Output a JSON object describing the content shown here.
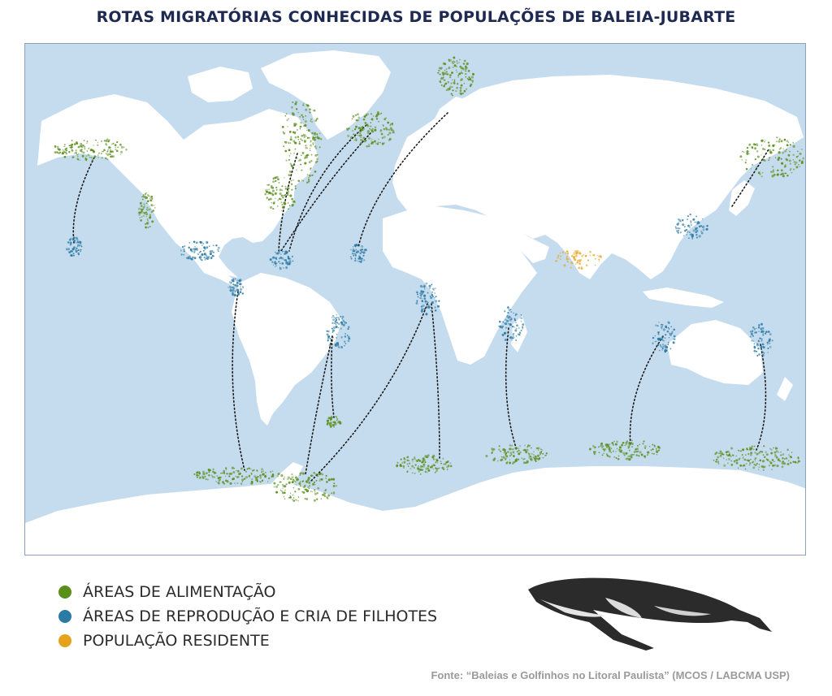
{
  "title": "ROTAS MIGRATÓRIAS CONHECIDAS DE POPULAÇÕES DE BALEIA-JUBARTE",
  "colors": {
    "ocean": "#c5dbee",
    "land": "#ffffff",
    "feeding": "#5a8f1c",
    "breeding": "#2a7aa3",
    "resident": "#e6a21a",
    "route": "#1a1a1a"
  },
  "legend": [
    {
      "label": "ÁREAS DE ALIMENTAÇÃO",
      "color": "#5a8f1c"
    },
    {
      "label": "ÁREAS DE REPRODUÇÃO E CRIA DE FILHOTES",
      "color": "#2a7aa3"
    },
    {
      "label": "POPULAÇÃO RESIDENTE",
      "color": "#e6a21a"
    }
  ],
  "source": "Fonte: “Baleias e Golfinhos no Litoral Paulista” (MCOS / LABCMA USP)",
  "whale_icon": "humpback-whale-illustration"
}
